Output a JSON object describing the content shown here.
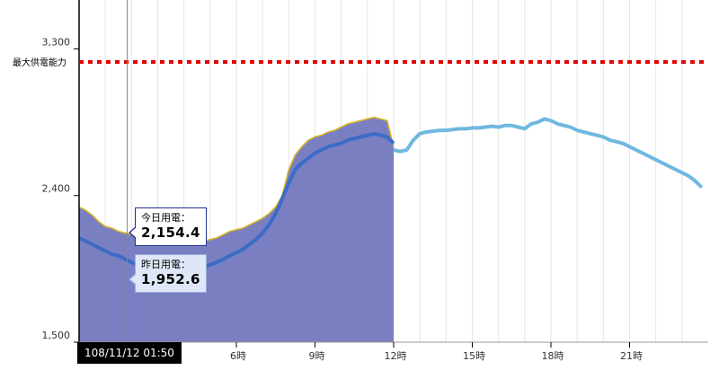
{
  "chart_data": {
    "type": "area",
    "ylim": [
      1500,
      3600
    ],
    "xlim": [
      0,
      24
    ],
    "yticks": [
      {
        "value": 1500,
        "label": "1,500"
      },
      {
        "value": 2400,
        "label": "2,400"
      },
      {
        "value": 3300,
        "label": "3,300"
      }
    ],
    "xticks": [
      {
        "value": 6,
        "label": "6時"
      },
      {
        "value": 9,
        "label": "9時"
      },
      {
        "value": 12,
        "label": "12時"
      },
      {
        "value": 15,
        "label": "15時"
      },
      {
        "value": 18,
        "label": "18時"
      },
      {
        "value": 21,
        "label": "21時"
      }
    ],
    "capacity": {
      "label": "最大供電能力",
      "value": 3220,
      "color": "#e00000"
    },
    "series": [
      {
        "key": "today",
        "color": "#7a7fc2",
        "edge_color": "#d8b52a",
        "x": [
          0,
          0.25,
          0.5,
          0.75,
          1,
          1.25,
          1.5,
          1.75,
          2,
          2.25,
          2.5,
          2.75,
          3,
          3.25,
          3.5,
          3.75,
          4,
          4.25,
          4.5,
          4.75,
          5,
          5.25,
          5.5,
          5.75,
          6,
          6.25,
          6.5,
          6.75,
          7,
          7.25,
          7.5,
          7.75,
          8,
          8.25,
          8.5,
          8.75,
          9,
          9.25,
          9.5,
          9.75,
          10,
          10.25,
          10.5,
          10.75,
          11,
          11.25,
          11.5,
          11.75,
          12
        ],
        "values": [
          2330,
          2310,
          2280,
          2240,
          2210,
          2200,
          2180,
          2170,
          2160,
          2150,
          2154.4,
          2150,
          2140,
          2130,
          2120,
          2120,
          2110,
          2110,
          2115,
          2120,
          2130,
          2140,
          2160,
          2180,
          2190,
          2200,
          2220,
          2240,
          2260,
          2290,
          2330,
          2400,
          2560,
          2650,
          2700,
          2740,
          2760,
          2770,
          2790,
          2800,
          2820,
          2840,
          2850,
          2860,
          2870,
          2880,
          2870,
          2860,
          2700
        ]
      },
      {
        "key": "forecast",
        "color": "#6fb8e0",
        "x": [
          12,
          12.25,
          12.5,
          12.75,
          13,
          13.25,
          13.5,
          13.75,
          14,
          14.25,
          14.5,
          14.75,
          15,
          15.25,
          15.5,
          15.75,
          16,
          16.25,
          16.5,
          16.75,
          17,
          17.25,
          17.5,
          17.75,
          18,
          18.25,
          18.5,
          18.75,
          19,
          19.25,
          19.5,
          19.75,
          20,
          20.25,
          20.5,
          20.75,
          21,
          21.25,
          21.5,
          21.75,
          22,
          22.25,
          22.5,
          22.75,
          23,
          23.25,
          23.5,
          23.75
        ],
        "values": [
          2680,
          2670,
          2680,
          2740,
          2780,
          2790,
          2795,
          2800,
          2800,
          2805,
          2810,
          2810,
          2815,
          2815,
          2820,
          2825,
          2820,
          2830,
          2830,
          2820,
          2810,
          2840,
          2850,
          2870,
          2860,
          2840,
          2830,
          2820,
          2800,
          2790,
          2780,
          2770,
          2760,
          2740,
          2730,
          2720,
          2700,
          2680,
          2660,
          2640,
          2620,
          2600,
          2580,
          2560,
          2540,
          2520,
          2490,
          2450
        ]
      },
      {
        "key": "yesterday",
        "color": "#3a6cc6",
        "x": [
          0,
          0.25,
          0.5,
          0.75,
          1,
          1.25,
          1.5,
          1.75,
          2,
          2.25,
          2.5,
          2.75,
          3,
          3.25,
          3.5,
          3.75,
          4,
          4.25,
          4.5,
          4.75,
          5,
          5.25,
          5.5,
          5.75,
          6,
          6.25,
          6.5,
          6.75,
          7,
          7.25,
          7.5,
          7.75,
          8,
          8.25,
          8.5,
          8.75,
          9,
          9.25,
          9.5,
          9.75,
          10,
          10.25,
          10.5,
          10.75,
          11,
          11.25,
          11.5,
          11.75,
          12
        ],
        "values": [
          2140,
          2120,
          2100,
          2080,
          2060,
          2040,
          2030,
          2010,
          1990,
          1970,
          1952.6,
          1950,
          1940,
          1930,
          1930,
          1930,
          1930,
          1935,
          1950,
          1960,
          1975,
          1990,
          2010,
          2030,
          2050,
          2070,
          2100,
          2130,
          2170,
          2220,
          2290,
          2380,
          2480,
          2560,
          2600,
          2630,
          2660,
          2680,
          2700,
          2710,
          2720,
          2740,
          2750,
          2760,
          2770,
          2780,
          2770,
          2760,
          2720
        ]
      }
    ]
  },
  "tooltip_today": {
    "label": "今日用電：",
    "value": "2,154.4"
  },
  "tooltip_yesterday": {
    "label": "昨日用電：",
    "value": "1,952.6"
  },
  "cursor": {
    "x": 1.8333,
    "label": "108/11/12 01:50"
  }
}
